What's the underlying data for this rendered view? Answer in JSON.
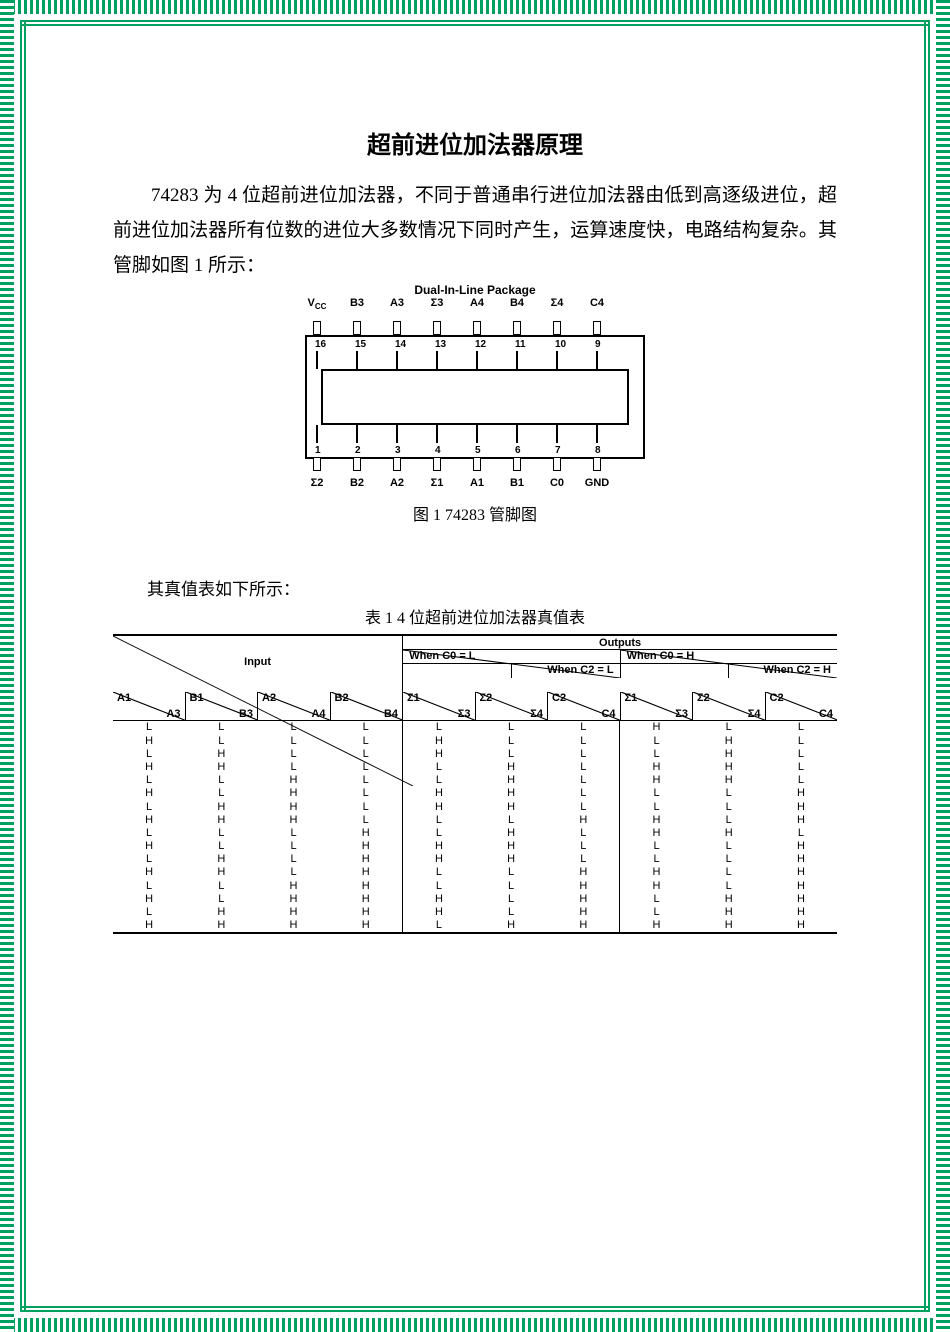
{
  "title": "超前进位加法器原理",
  "paragraph": "74283 为 4 位超前进位加法器，不同于普通串行进位加法器由低到高逐级进位，超前进位加法器所有位数的进位大多数情况下同时产生，运算速度快，电路结构复杂。其管脚如图 1 所示：",
  "pinout": {
    "package_title": "Dual-In-Line Package",
    "top_pins": [
      {
        "num": "16",
        "label": "V_CC"
      },
      {
        "num": "15",
        "label": "B3"
      },
      {
        "num": "14",
        "label": "A3"
      },
      {
        "num": "13",
        "label": "Σ3"
      },
      {
        "num": "12",
        "label": "A4"
      },
      {
        "num": "11",
        "label": "B4"
      },
      {
        "num": "10",
        "label": "Σ4"
      },
      {
        "num": "9",
        "label": "C4"
      }
    ],
    "bottom_pins": [
      {
        "num": "1",
        "label": "Σ2"
      },
      {
        "num": "2",
        "label": "B2"
      },
      {
        "num": "3",
        "label": "A2"
      },
      {
        "num": "4",
        "label": "Σ1"
      },
      {
        "num": "5",
        "label": "A1"
      },
      {
        "num": "6",
        "label": "B1"
      },
      {
        "num": "7",
        "label": "C0"
      },
      {
        "num": "8",
        "label": "GND"
      }
    ],
    "caption": "图 1  74283 管脚图"
  },
  "tt_intro": "其真值表如下所示：",
  "tt_caption": "表 1  4 位超前进位加法器真值表",
  "truth_table": {
    "input_label": "Input",
    "outputs_label": "Outputs",
    "when_c0_l": "When C0 = L",
    "when_c0_h": "When C0 = H",
    "when_c2_l": "When C2 = L",
    "when_c2_h": "When C2 = H",
    "header_cols": [
      {
        "r1": "A1",
        "r2": "A3"
      },
      {
        "r1": "B1",
        "r2": "B3"
      },
      {
        "r1": "A2",
        "r2": "A4"
      },
      {
        "r1": "B2",
        "r2": "B4"
      },
      {
        "r1": "Σ1",
        "r2": "Σ3"
      },
      {
        "r1": "Σ2",
        "r2": "Σ4"
      },
      {
        "r1": "C2",
        "r2": "C4"
      },
      {
        "r1": "Σ1",
        "r2": "Σ3"
      },
      {
        "r1": "Σ2",
        "r2": "Σ4"
      },
      {
        "r1": "C2",
        "r2": "C4"
      }
    ],
    "rows": [
      [
        "L",
        "L",
        "L",
        "L",
        "L",
        "L",
        "L",
        "H",
        "L",
        "L"
      ],
      [
        "H",
        "L",
        "L",
        "L",
        "H",
        "L",
        "L",
        "L",
        "H",
        "L"
      ],
      [
        "L",
        "H",
        "L",
        "L",
        "H",
        "L",
        "L",
        "L",
        "H",
        "L"
      ],
      [
        "H",
        "H",
        "L",
        "L",
        "L",
        "H",
        "L",
        "H",
        "H",
        "L"
      ],
      [
        "L",
        "L",
        "H",
        "L",
        "L",
        "H",
        "L",
        "H",
        "H",
        "L"
      ],
      [
        "H",
        "L",
        "H",
        "L",
        "H",
        "H",
        "L",
        "L",
        "L",
        "H"
      ],
      [
        "L",
        "H",
        "H",
        "L",
        "H",
        "H",
        "L",
        "L",
        "L",
        "H"
      ],
      [
        "H",
        "H",
        "H",
        "L",
        "L",
        "L",
        "H",
        "H",
        "L",
        "H"
      ],
      [
        "L",
        "L",
        "L",
        "H",
        "L",
        "H",
        "L",
        "H",
        "H",
        "L"
      ],
      [
        "H",
        "L",
        "L",
        "H",
        "H",
        "H",
        "L",
        "L",
        "L",
        "H"
      ],
      [
        "L",
        "H",
        "L",
        "H",
        "H",
        "H",
        "L",
        "L",
        "L",
        "H"
      ],
      [
        "H",
        "H",
        "L",
        "H",
        "L",
        "L",
        "H",
        "H",
        "L",
        "H"
      ],
      [
        "L",
        "L",
        "H",
        "H",
        "L",
        "L",
        "H",
        "H",
        "L",
        "H"
      ],
      [
        "H",
        "L",
        "H",
        "H",
        "H",
        "L",
        "H",
        "L",
        "H",
        "H"
      ],
      [
        "L",
        "H",
        "H",
        "H",
        "H",
        "L",
        "H",
        "L",
        "H",
        "H"
      ],
      [
        "H",
        "H",
        "H",
        "H",
        "L",
        "H",
        "H",
        "H",
        "H",
        "H"
      ]
    ]
  },
  "colors": {
    "border_green": "#00a060",
    "text": "#000000",
    "bg": "#ffffff"
  }
}
